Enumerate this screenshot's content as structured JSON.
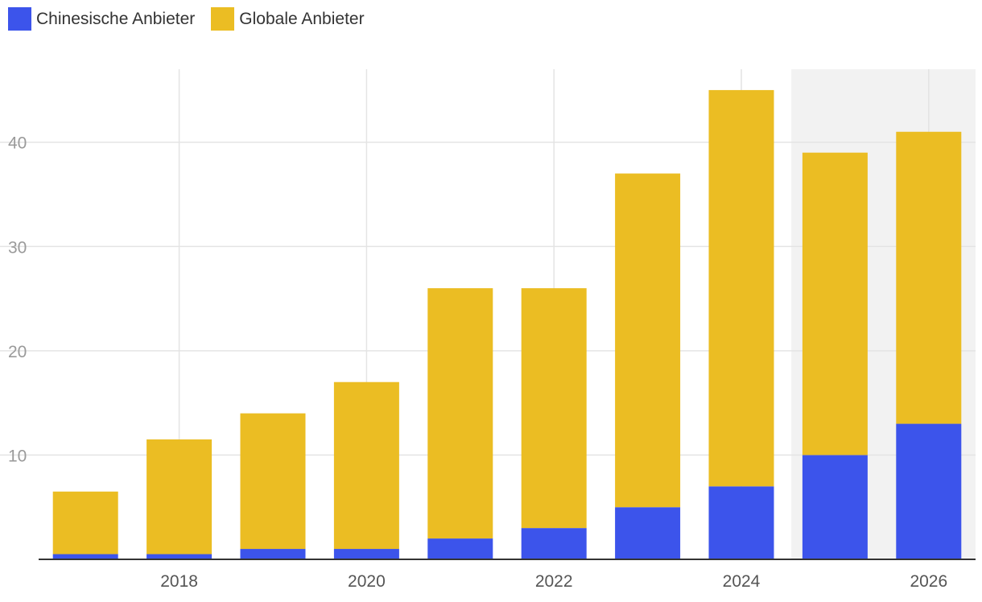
{
  "chart_data": {
    "type": "bar",
    "stacked": true,
    "title": "",
    "xlabel": "",
    "ylabel": "",
    "categories": [
      "2017",
      "2018",
      "2019",
      "2020",
      "2021",
      "2022",
      "2023",
      "2024",
      "2025",
      "2026"
    ],
    "x_tick_labels": [
      "2018",
      "2020",
      "2022",
      "2024",
      "2026"
    ],
    "y_ticks": [
      10,
      20,
      30,
      40
    ],
    "ylim": [
      0,
      47
    ],
    "forecast_start_category": "2025",
    "grid": true,
    "legend_position": "top-left",
    "series": [
      {
        "name": "Chinesische Anbieter",
        "color": "#3c54eb",
        "values": [
          0.5,
          0.5,
          1,
          1,
          2,
          3,
          5,
          7,
          10,
          13
        ]
      },
      {
        "name": "Globale Anbieter",
        "color": "#ebbd23",
        "values": [
          6,
          11,
          13,
          16,
          24,
          23,
          32,
          38,
          29,
          28
        ]
      }
    ]
  }
}
